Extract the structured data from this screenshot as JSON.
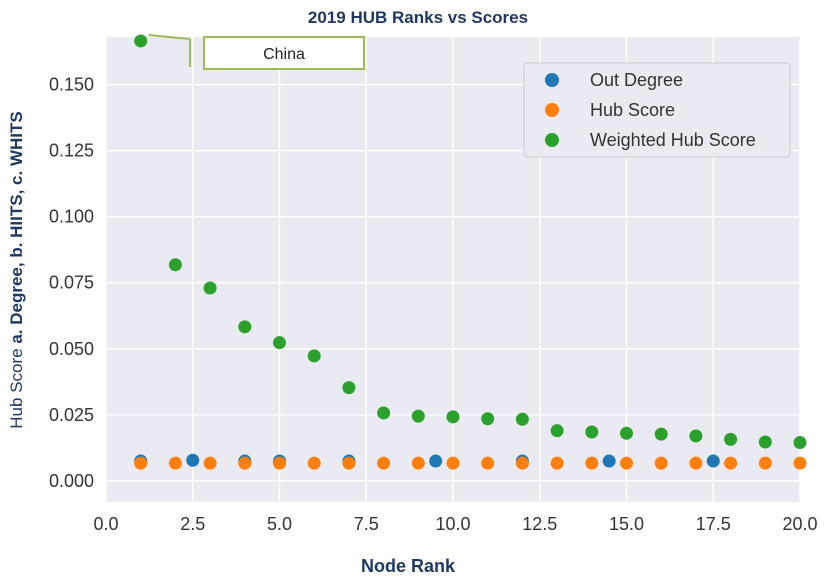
{
  "chart_data": {
    "type": "scatter",
    "title": "2019 HUB Ranks vs Scores",
    "xlabel": "Node Rank",
    "ylabel_prefix": "Hub Score ",
    "ylabel_bold": "a. Degree, b. HIITS, c. WHITS",
    "xlim": [
      0,
      20
    ],
    "ylim": [
      -0.008,
      0.168
    ],
    "xticks": [
      0,
      2.5,
      5,
      7.5,
      10,
      12.5,
      15,
      17.5,
      20
    ],
    "xtick_labels": [
      "0.0",
      "2.5",
      "5.0",
      "7.5",
      "10.0",
      "12.5",
      "15.0",
      "17.5",
      "20.0"
    ],
    "yticks": [
      0,
      0.025,
      0.05,
      0.075,
      0.1,
      0.125,
      0.15
    ],
    "ytick_labels": [
      "0.000",
      "0.025",
      "0.050",
      "0.075",
      "0.100",
      "0.125",
      "0.150"
    ],
    "grid": true,
    "legend_position": "top-right",
    "series": [
      {
        "name": "Out Degree",
        "color": "#1f77b4",
        "x": [
          1,
          2.5,
          4,
          5,
          7,
          9.5,
          12,
          14.5,
          17.5
        ],
        "y": [
          0.0075,
          0.0078,
          0.0075,
          0.0075,
          0.0075,
          0.0075,
          0.0075,
          0.0075,
          0.0075
        ]
      },
      {
        "name": "Hub Score",
        "color": "#ff7f0e",
        "x": [
          1,
          2,
          3,
          4,
          5,
          6,
          7,
          8,
          9,
          10,
          11,
          12,
          13,
          14,
          15,
          16,
          17,
          18,
          19,
          20
        ],
        "y": [
          0.0067,
          0.0067,
          0.0067,
          0.0067,
          0.0067,
          0.0067,
          0.0067,
          0.0067,
          0.0067,
          0.0067,
          0.0067,
          0.0067,
          0.0067,
          0.0067,
          0.0067,
          0.0067,
          0.0067,
          0.0067,
          0.0067,
          0.0067
        ]
      },
      {
        "name": "Weighted Hub Score",
        "color": "#2ca02c",
        "x": [
          1,
          2,
          3,
          4,
          5,
          6,
          7,
          8,
          9,
          10,
          11,
          12,
          13,
          14,
          15,
          16,
          17,
          18,
          19,
          20
        ],
        "y": [
          0.1665,
          0.0818,
          0.073,
          0.0583,
          0.0523,
          0.0473,
          0.0353,
          0.0257,
          0.0245,
          0.0242,
          0.0235,
          0.0233,
          0.019,
          0.0185,
          0.018,
          0.0177,
          0.017,
          0.0157,
          0.0147,
          0.0145
        ]
      }
    ],
    "annotations": [
      {
        "text": "China",
        "point": [
          1,
          0.1665
        ]
      }
    ]
  }
}
